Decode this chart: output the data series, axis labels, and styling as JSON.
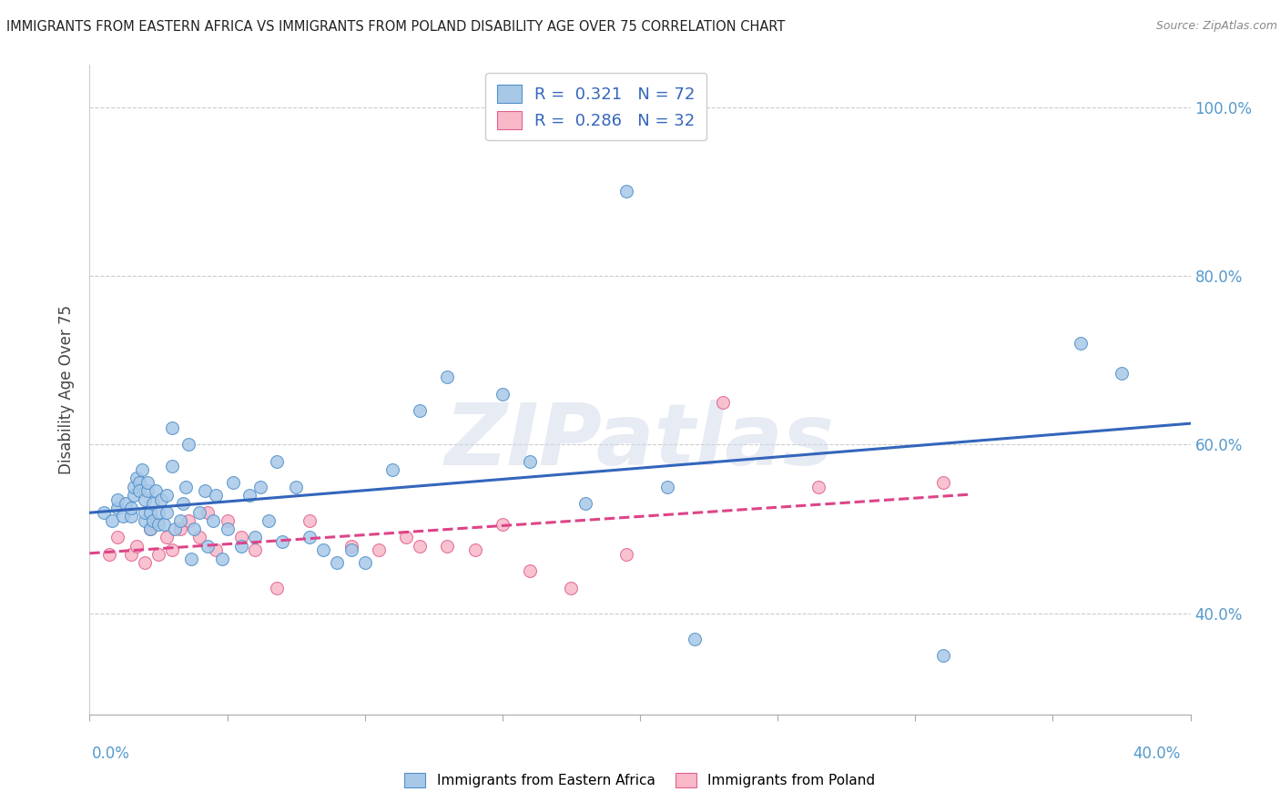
{
  "title": "IMMIGRANTS FROM EASTERN AFRICA VS IMMIGRANTS FROM POLAND DISABILITY AGE OVER 75 CORRELATION CHART",
  "source": "Source: ZipAtlas.com",
  "ylabel": "Disability Age Over 75",
  "ylabel_right_ticks": [
    "40.0%",
    "60.0%",
    "80.0%",
    "100.0%"
  ],
  "ylabel_right_vals": [
    0.4,
    0.6,
    0.8,
    1.0
  ],
  "xlim": [
    0.0,
    0.4
  ],
  "ylim": [
    0.28,
    1.05
  ],
  "r_blue": 0.321,
  "n_blue": 72,
  "r_pink": 0.286,
  "n_pink": 32,
  "blue_color": "#a8c8e8",
  "pink_color": "#f8b8c8",
  "blue_edge_color": "#5090c8",
  "pink_edge_color": "#e06090",
  "blue_line_color": "#3366bb",
  "pink_line_color": "#dd4488",
  "right_label_color": "#5599cc",
  "blue_scatter_x": [
    0.005,
    0.008,
    0.01,
    0.01,
    0.012,
    0.013,
    0.015,
    0.015,
    0.016,
    0.016,
    0.017,
    0.018,
    0.018,
    0.019,
    0.02,
    0.02,
    0.02,
    0.021,
    0.021,
    0.022,
    0.022,
    0.023,
    0.023,
    0.024,
    0.025,
    0.025,
    0.026,
    0.027,
    0.028,
    0.028,
    0.03,
    0.03,
    0.031,
    0.033,
    0.034,
    0.035,
    0.036,
    0.037,
    0.038,
    0.04,
    0.042,
    0.043,
    0.045,
    0.046,
    0.048,
    0.05,
    0.052,
    0.055,
    0.058,
    0.06,
    0.062,
    0.065,
    0.068,
    0.07,
    0.075,
    0.08,
    0.085,
    0.09,
    0.095,
    0.1,
    0.11,
    0.12,
    0.13,
    0.15,
    0.16,
    0.18,
    0.195,
    0.21,
    0.22,
    0.31,
    0.36,
    0.375
  ],
  "blue_scatter_y": [
    0.52,
    0.51,
    0.525,
    0.535,
    0.515,
    0.53,
    0.515,
    0.525,
    0.54,
    0.55,
    0.56,
    0.555,
    0.545,
    0.57,
    0.51,
    0.52,
    0.535,
    0.545,
    0.555,
    0.5,
    0.52,
    0.51,
    0.53,
    0.545,
    0.505,
    0.52,
    0.535,
    0.505,
    0.52,
    0.54,
    0.575,
    0.62,
    0.5,
    0.51,
    0.53,
    0.55,
    0.6,
    0.465,
    0.5,
    0.52,
    0.545,
    0.48,
    0.51,
    0.54,
    0.465,
    0.5,
    0.555,
    0.48,
    0.54,
    0.49,
    0.55,
    0.51,
    0.58,
    0.485,
    0.55,
    0.49,
    0.475,
    0.46,
    0.475,
    0.46,
    0.57,
    0.64,
    0.68,
    0.66,
    0.58,
    0.53,
    0.9,
    0.55,
    0.37,
    0.35,
    0.72,
    0.685
  ],
  "pink_scatter_x": [
    0.007,
    0.01,
    0.015,
    0.017,
    0.02,
    0.022,
    0.025,
    0.028,
    0.03,
    0.033,
    0.036,
    0.04,
    0.043,
    0.046,
    0.05,
    0.055,
    0.06,
    0.068,
    0.08,
    0.095,
    0.105,
    0.115,
    0.12,
    0.13,
    0.14,
    0.15,
    0.16,
    0.175,
    0.195,
    0.23,
    0.265,
    0.31
  ],
  "pink_scatter_y": [
    0.47,
    0.49,
    0.47,
    0.48,
    0.46,
    0.5,
    0.47,
    0.49,
    0.475,
    0.5,
    0.51,
    0.49,
    0.52,
    0.475,
    0.51,
    0.49,
    0.475,
    0.43,
    0.51,
    0.48,
    0.475,
    0.49,
    0.48,
    0.48,
    0.475,
    0.505,
    0.45,
    0.43,
    0.47,
    0.65,
    0.55,
    0.555
  ],
  "pink_trend_xlim": [
    0.0,
    0.32
  ],
  "watermark": "ZIPatlas",
  "xticks": [
    0.0,
    0.05,
    0.1,
    0.15,
    0.2,
    0.25,
    0.3,
    0.35,
    0.4
  ],
  "yticks": [
    0.4,
    0.6,
    0.8,
    1.0
  ]
}
